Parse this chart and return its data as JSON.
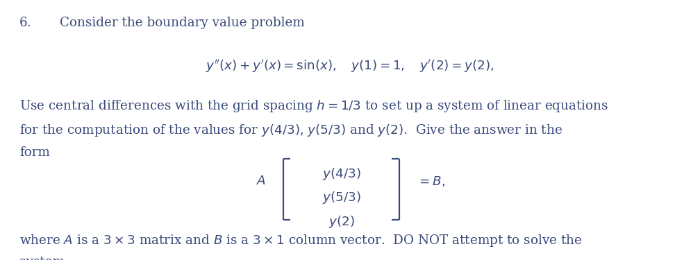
{
  "background_color": "#ffffff",
  "text_color": "#3a4a7a",
  "figsize": [
    10.08,
    3.75
  ],
  "dpi": 100,
  "font_size": 13.2,
  "number": "6.",
  "title_text": "Consider the boundary value problem",
  "equation": "$y''(x) + y'(x) = \\sin(x), \\quad y(1) = 1, \\quad y'(2) = y(2),$",
  "para_line1": "Use central differences with the grid spacing $h = 1/3$ to set up a system of linear equations",
  "para_line2": "for the computation of the values for $y(4/3)$, $y(5/3)$ and $y(2)$.  Give the answer in the",
  "para_line3": "form",
  "matrix_label": "$A$",
  "matrix_row1": "$y(4/3)$",
  "matrix_row2": "$y(5/3)$",
  "matrix_row3": "$y(2)$",
  "matrix_rhs": "$= B,$",
  "footer_line1": "where $A$ is a $3 \\times 3$ matrix and $B$ is a $3 \\times 1$ column vector.  DO NOT attempt to solve the",
  "footer_line2": "system."
}
